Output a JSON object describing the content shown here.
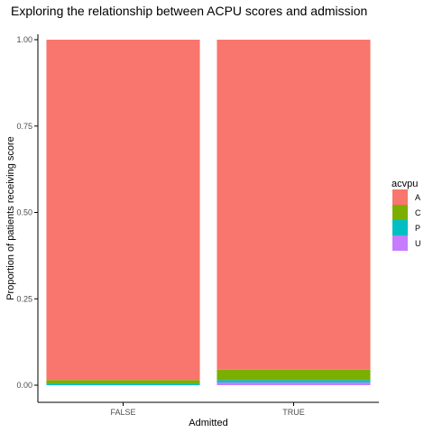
{
  "chart_data": {
    "type": "bar",
    "stacked": true,
    "title": "Exploring the relationship between ACPU scores and admission",
    "xlabel": "Admitted",
    "ylabel": "Proportion of patients receiving score",
    "categories": [
      "FALSE",
      "TRUE"
    ],
    "ylim": [
      0,
      1
    ],
    "yticks": [
      "0.00",
      "0.25",
      "0.50",
      "0.75",
      "1.00"
    ],
    "legend": {
      "title": "acvpu",
      "position": "right"
    },
    "series": [
      {
        "name": "A",
        "color": "#F8766D",
        "values": [
          0.985,
          0.955
        ]
      },
      {
        "name": "C",
        "color": "#7CAE00",
        "values": [
          0.01,
          0.03
        ]
      },
      {
        "name": "P",
        "color": "#00BFC4",
        "values": [
          0.005,
          0.007
        ]
      },
      {
        "name": "U",
        "color": "#C77CFF",
        "values": [
          0.0,
          0.008
        ]
      }
    ],
    "grid": false
  }
}
